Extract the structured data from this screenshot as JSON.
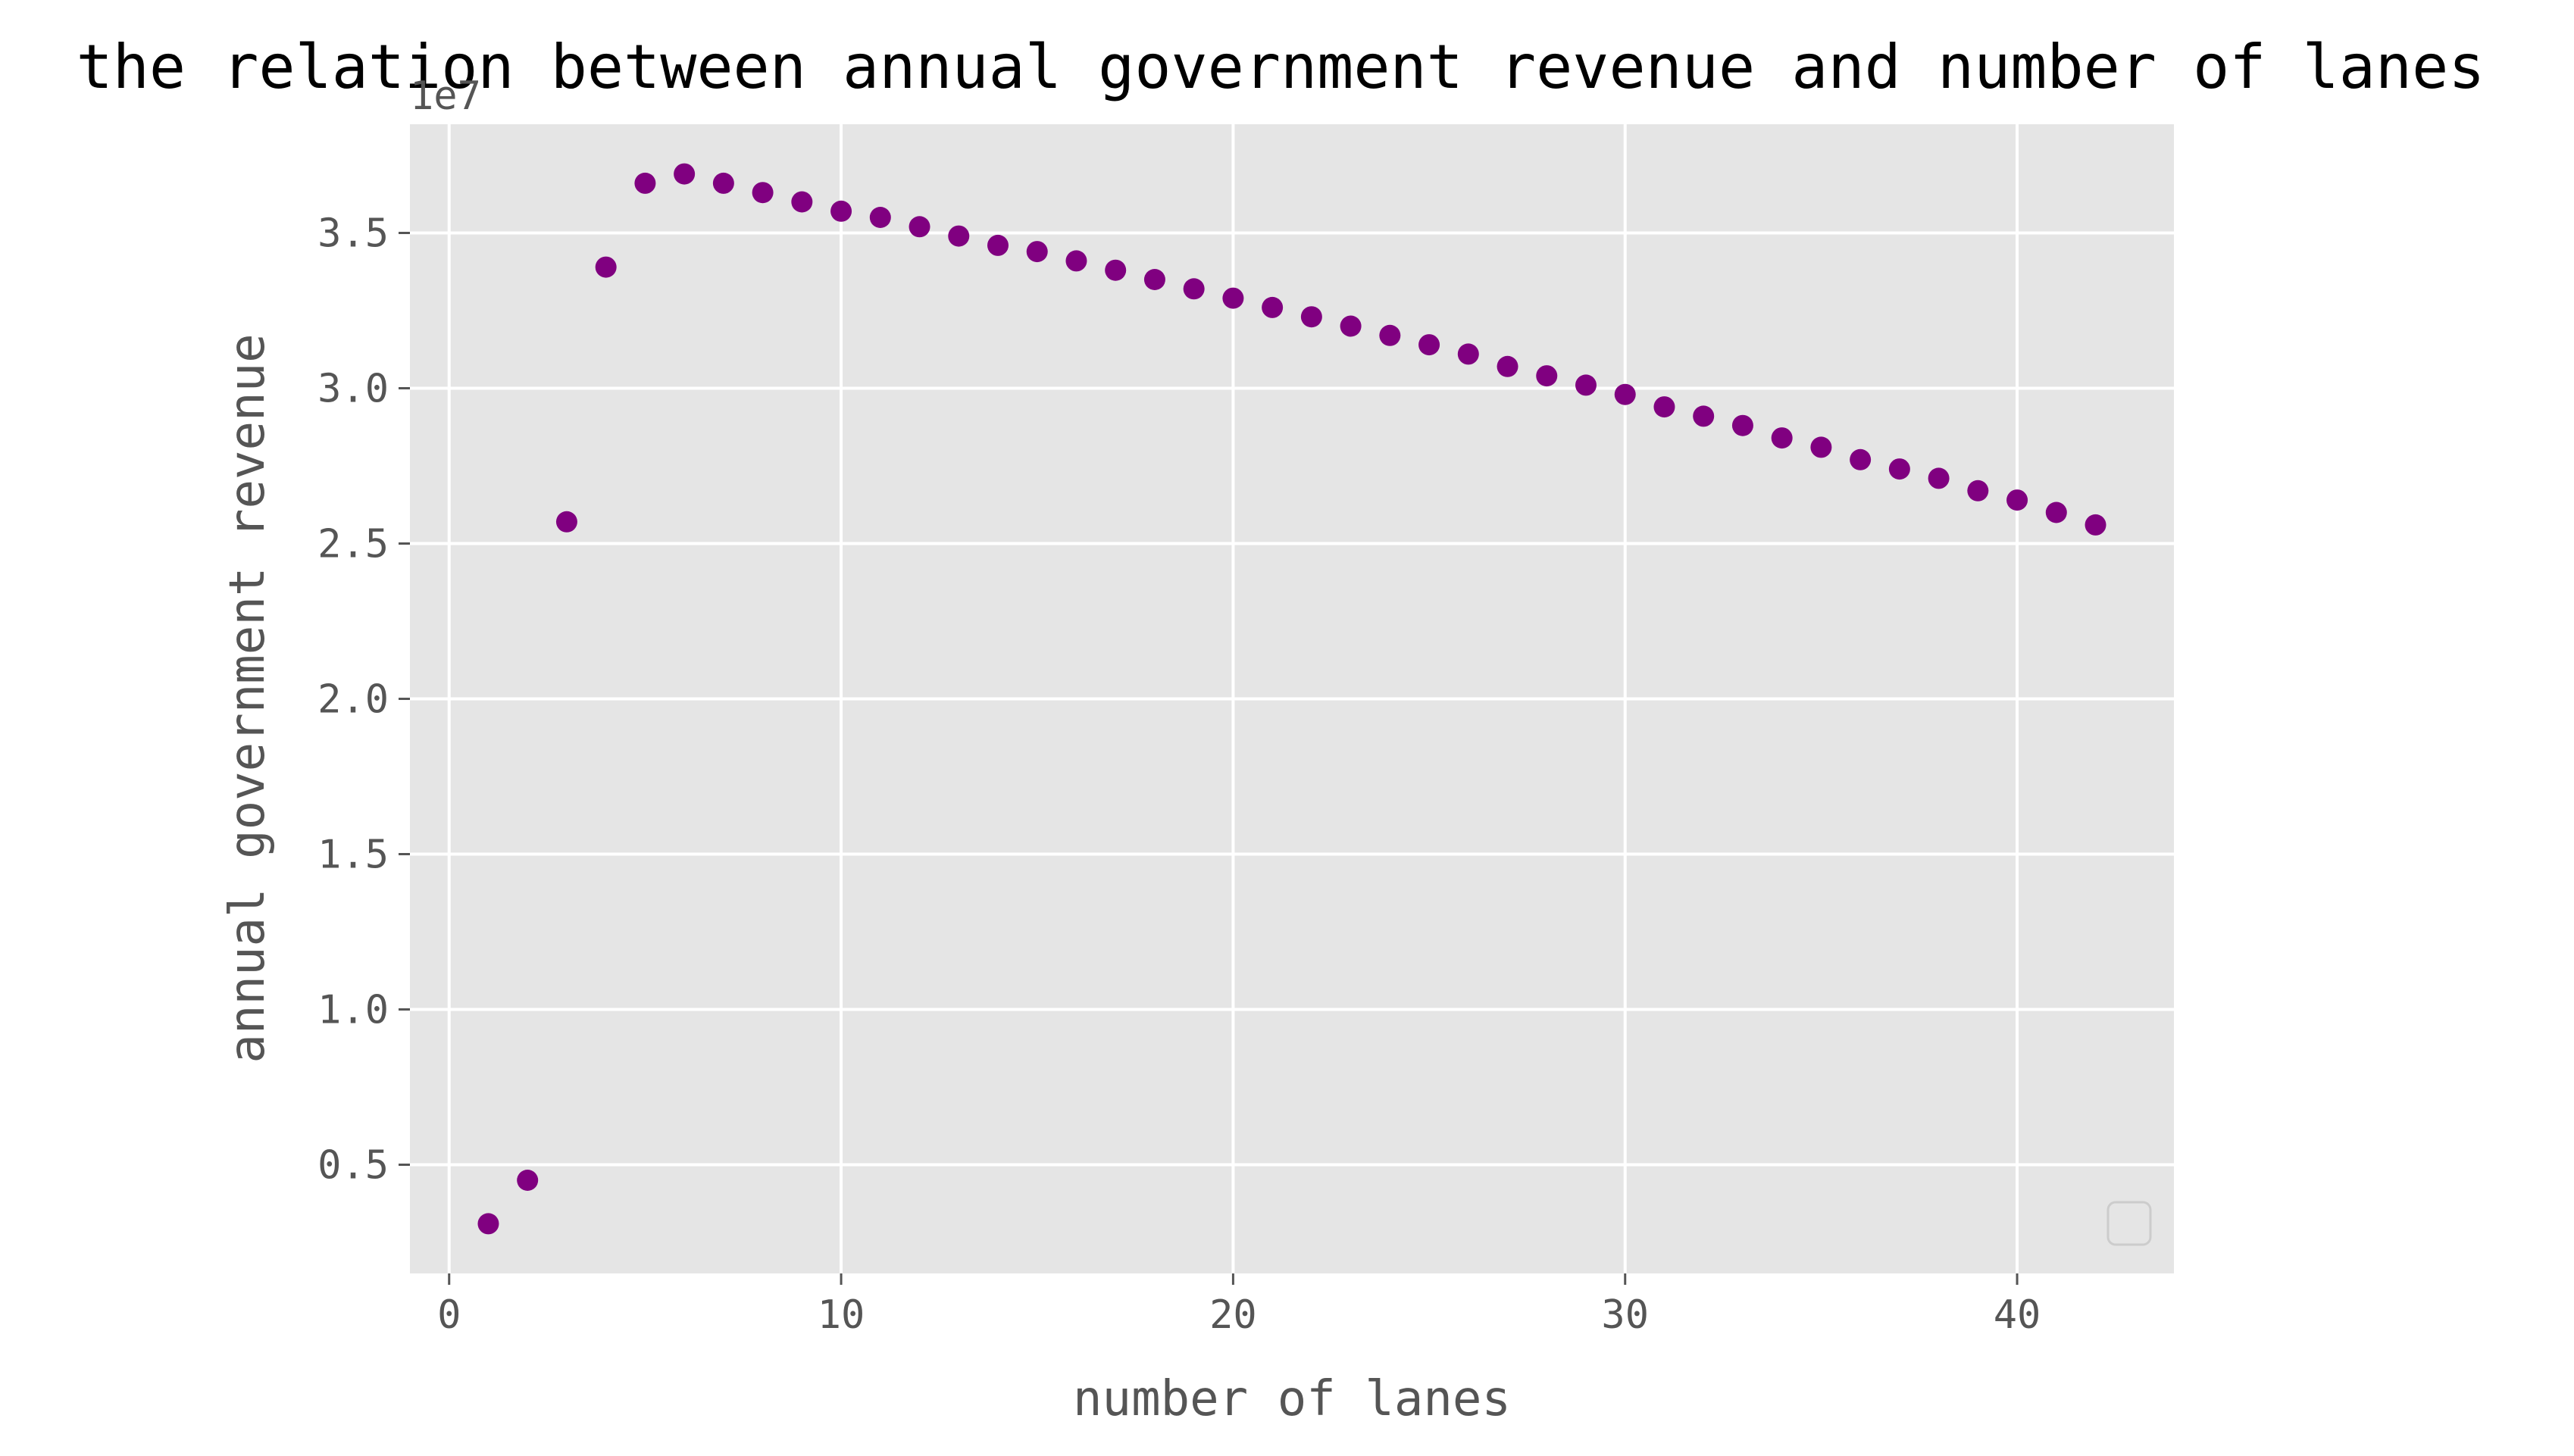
{
  "chart_data": {
    "type": "scatter",
    "title": "the relation between annual government revenue and number of lanes",
    "xlabel": "number of lanes",
    "ylabel": "annual government revenue",
    "y_offset_label": "1e7",
    "xlim": [
      -1,
      44
    ],
    "ylim": [
      0.15,
      3.85
    ],
    "x_ticks": [
      0,
      10,
      20,
      30,
      40
    ],
    "x_tick_labels": [
      "0",
      "10",
      "20",
      "30",
      "40"
    ],
    "y_ticks": [
      0.5,
      1.0,
      1.5,
      2.0,
      2.5,
      3.0,
      3.5
    ],
    "y_tick_labels": [
      "0.5",
      "1.0",
      "1.5",
      "2.0",
      "2.5",
      "3.0",
      "3.5"
    ],
    "grid": true,
    "legend": "bottom-right (empty)",
    "colors": {
      "background": "#e5e5e5",
      "grid": "#ffffff",
      "marker": "#800080"
    },
    "x": [
      1,
      2,
      3,
      4,
      5,
      6,
      7,
      8,
      9,
      10,
      11,
      12,
      13,
      14,
      15,
      16,
      17,
      18,
      19,
      20,
      21,
      22,
      23,
      24,
      25,
      26,
      27,
      28,
      29,
      30,
      31,
      32,
      33,
      34,
      35,
      36,
      37,
      38,
      39,
      40,
      41,
      42
    ],
    "y": [
      0.31,
      0.45,
      2.57,
      3.39,
      3.66,
      3.69,
      3.66,
      3.63,
      3.6,
      3.57,
      3.55,
      3.52,
      3.49,
      3.46,
      3.44,
      3.41,
      3.38,
      3.35,
      3.32,
      3.29,
      3.26,
      3.23,
      3.2,
      3.17,
      3.14,
      3.11,
      3.07,
      3.04,
      3.01,
      2.98,
      2.94,
      2.91,
      2.88,
      2.84,
      2.81,
      2.77,
      2.74,
      2.71,
      2.67,
      2.64,
      2.6,
      2.56
    ]
  }
}
